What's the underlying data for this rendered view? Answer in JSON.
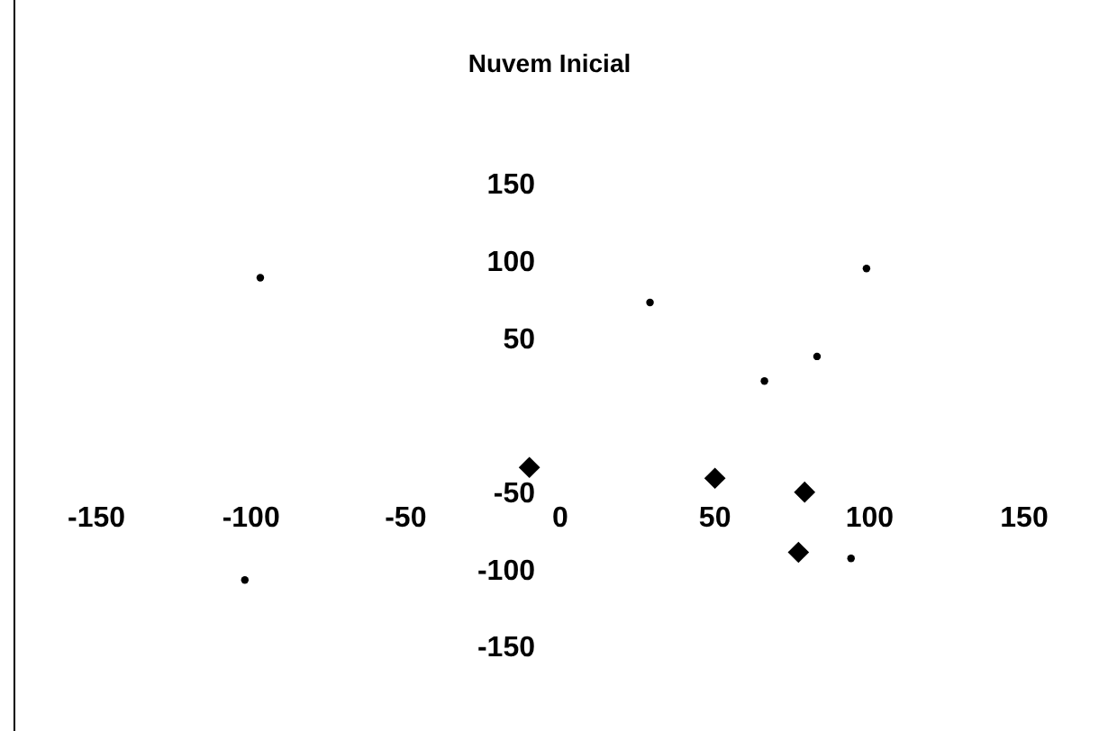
{
  "chart_data": {
    "type": "scatter",
    "title": "Nuvem Inicial",
    "xlim": [
      -150,
      150
    ],
    "xticks": [
      -150,
      -100,
      -50,
      0,
      50,
      100,
      150
    ],
    "ylim": [
      -150,
      150
    ],
    "yticks": [
      -150,
      -100,
      -50,
      50,
      100,
      150
    ],
    "grid": false,
    "series": [
      {
        "color": "#000000",
        "marker": "circle",
        "x": [
          -97,
          29,
          99,
          83,
          66,
          -102,
          94
        ],
        "values": [
          89,
          73,
          95,
          38,
          22,
          -107,
          -93
        ]
      },
      {
        "color": "#000000",
        "marker": "diamond",
        "x": [
          -10,
          50,
          79,
          77
        ],
        "values": [
          -34,
          -41,
          -50,
          -89
        ]
      }
    ]
  }
}
